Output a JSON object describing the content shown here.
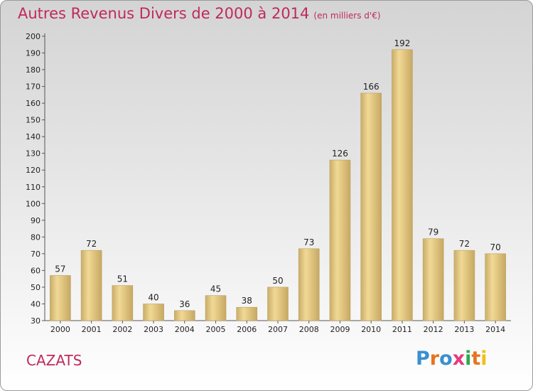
{
  "chart_data": {
    "type": "bar",
    "title": "Autres Revenus Divers de 2000 à 2014",
    "subtitle": "(en milliers d'€)",
    "categories": [
      "2000",
      "2001",
      "2002",
      "2003",
      "2004",
      "2005",
      "2006",
      "2007",
      "2008",
      "2009",
      "2010",
      "2011",
      "2012",
      "2013",
      "2014"
    ],
    "values": [
      57,
      72,
      51,
      40,
      36,
      45,
      38,
      50,
      73,
      126,
      166,
      192,
      79,
      72,
      70
    ],
    "ylim": [
      30,
      200
    ],
    "yticks": [
      30,
      40,
      50,
      60,
      70,
      80,
      90,
      100,
      110,
      120,
      130,
      140,
      150,
      160,
      170,
      180,
      190,
      200
    ],
    "bar_color": "#e6c880",
    "legend": "none",
    "grid": false
  },
  "place": "CAZATS",
  "logo": {
    "text": "Proxiti",
    "colors": [
      "#3a8fd0",
      "#e8731e",
      "#3a8fd0",
      "#e43b7c",
      "#2fa84f",
      "#e8731e",
      "#f0c018"
    ]
  }
}
